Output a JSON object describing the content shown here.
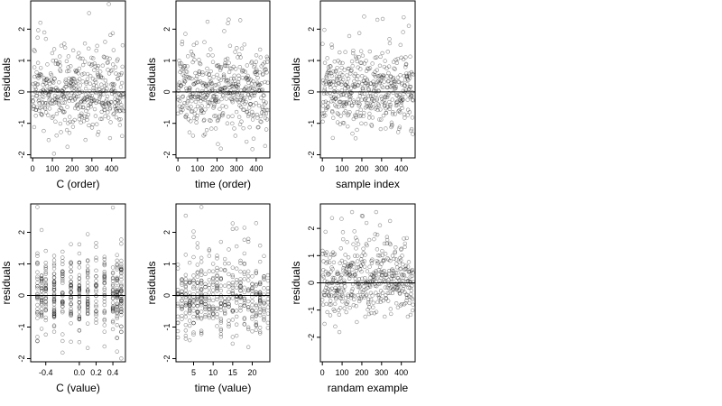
{
  "chart_data": [
    {
      "type": "scatter",
      "xlabel": "C (order)",
      "ylabel": "residuals",
      "xlim": [
        -10,
        470
      ],
      "ylim": [
        -2.1,
        2.9
      ],
      "xticks": [
        0,
        100,
        200,
        300,
        400
      ],
      "yticks": [
        -2,
        -1,
        0,
        1,
        2
      ],
      "reference_line": 0,
      "n_points": 460,
      "residual_range": [
        -2.0,
        2.8
      ],
      "seed": 11
    },
    {
      "type": "scatter",
      "xlabel": "time (order)",
      "ylabel": "residuals",
      "xlim": [
        -10,
        470
      ],
      "ylim": [
        -2.1,
        2.9
      ],
      "xticks": [
        0,
        100,
        200,
        300,
        400
      ],
      "yticks": [
        -2,
        -1,
        0,
        1,
        2
      ],
      "reference_line": 0,
      "n_points": 460,
      "residual_range": [
        -2.0,
        2.8
      ],
      "seed": 23
    },
    {
      "type": "scatter",
      "xlabel": "sample index",
      "ylabel": "residuals",
      "xlim": [
        -10,
        470
      ],
      "ylim": [
        -2.1,
        2.9
      ],
      "xticks": [
        0,
        100,
        200,
        300,
        400
      ],
      "yticks": [
        -2,
        -1,
        0,
        1,
        2
      ],
      "reference_line": 0,
      "n_points": 460,
      "residual_range": [
        -2.0,
        2.8
      ],
      "seed": 37
    },
    {
      "type": "scatter",
      "xlabel": "C (value)",
      "ylabel": "residuals",
      "xlim": [
        -0.58,
        0.55
      ],
      "ylim": [
        -2.1,
        2.9
      ],
      "xticks": [
        -0.4,
        0.0,
        0.2,
        0.4
      ],
      "xticklabels": [
        "-0.4",
        "0.0",
        "0.2",
        "0.4"
      ],
      "yticks": [
        -2,
        -1,
        0,
        1,
        2
      ],
      "reference_line": 0,
      "x_levels": [
        -0.5,
        -0.45,
        -0.4,
        -0.3,
        -0.2,
        -0.1,
        0.0,
        0.1,
        0.2,
        0.3,
        0.4,
        0.45,
        0.5
      ],
      "n_points": 460,
      "residual_range": [
        -2.0,
        2.8
      ],
      "seed": 41
    },
    {
      "type": "scatter",
      "xlabel": "time (value)",
      "ylabel": "residuals",
      "xlim": [
        0.5,
        24.5
      ],
      "ylim": [
        -2.1,
        2.9
      ],
      "xticks": [
        5,
        10,
        15,
        20
      ],
      "yticks": [
        -2,
        -1,
        0,
        1,
        2
      ],
      "reference_line": 0,
      "x_levels": [
        1,
        2,
        3,
        4,
        5,
        6,
        7,
        8,
        9,
        10,
        11,
        12,
        13,
        14,
        15,
        16,
        17,
        18,
        19,
        20,
        21,
        22,
        23,
        24
      ],
      "n_points": 460,
      "residual_range": [
        -2.0,
        2.8
      ],
      "seed": 53
    },
    {
      "type": "scatter",
      "xlabel": "randam example",
      "ylabel": "residuals",
      "xlim": [
        -10,
        470
      ],
      "ylim": [
        -2.9,
        2.9
      ],
      "xticks": [
        0,
        100,
        200,
        300,
        400
      ],
      "yticks": [
        -2,
        -1,
        0,
        1,
        2
      ],
      "reference_line": 0,
      "n_points": 460,
      "residual_range": [
        -2.6,
        2.6
      ],
      "seed": 67
    }
  ]
}
